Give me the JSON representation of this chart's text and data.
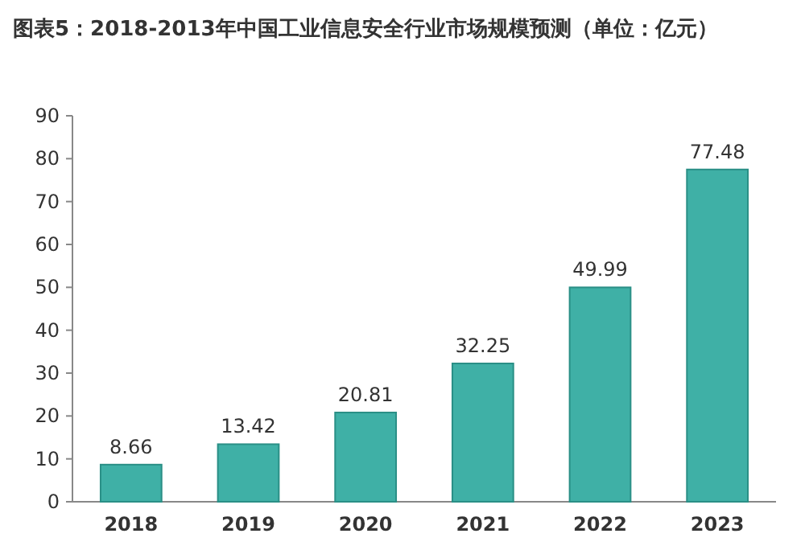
{
  "chart_data": {
    "type": "bar",
    "title": "图表5：2018-2013年中国工业信息安全行业市场规模预测（单位：亿元）",
    "categories": [
      "2018",
      "2019",
      "2020",
      "2021",
      "2022",
      "2023"
    ],
    "values": [
      8.66,
      13.42,
      20.81,
      32.25,
      49.99,
      77.48
    ],
    "color": "#3fb0a6",
    "ylim": [
      0,
      90
    ],
    "yticks": [
      0,
      10,
      20,
      30,
      40,
      50,
      60,
      70,
      80,
      90
    ],
    "data_labels": true,
    "grid": false
  }
}
